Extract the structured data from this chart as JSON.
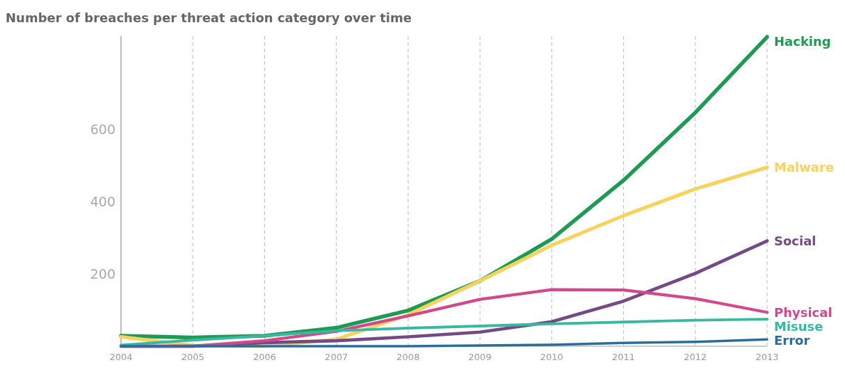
{
  "chart_data": {
    "type": "line",
    "title": "Number of breaches per threat action category over time",
    "x": [
      2004,
      2005,
      2006,
      2007,
      2008,
      2009,
      2010,
      2011,
      2012,
      2013
    ],
    "series": [
      {
        "name": "Hacking",
        "color": "#1f9a54",
        "values": [
          29,
          24,
          29,
          51,
          99,
          181,
          297,
          460,
          648,
          858
        ]
      },
      {
        "name": "Malware",
        "color": "#f4d35e",
        "values": [
          26,
          2,
          0,
          19,
          87,
          181,
          280,
          362,
          436,
          496
        ]
      },
      {
        "name": "Social",
        "color": "#744a86",
        "values": [
          0,
          0,
          10,
          15,
          26,
          39,
          68,
          125,
          202,
          292
        ]
      },
      {
        "name": "Physical",
        "color": "#d2498a",
        "values": [
          0,
          0,
          15,
          41,
          84,
          130,
          157,
          156,
          132,
          94
        ]
      },
      {
        "name": "Misuse",
        "color": "#36b9a0",
        "values": [
          3,
          17,
          29,
          43,
          50,
          56,
          62,
          67,
          72,
          75
        ]
      },
      {
        "name": "Error",
        "color": "#2a6d9c",
        "values": [
          0,
          0,
          0,
          0,
          0,
          2,
          4,
          9,
          12,
          19
        ]
      }
    ],
    "xlim": [
      2004,
      2013
    ],
    "xticks": [
      2004,
      2005,
      2006,
      2007,
      2008,
      2009,
      2010,
      2011,
      2012,
      2013
    ],
    "ylim": [
      0,
      860
    ],
    "yticks": [
      200,
      400,
      600
    ],
    "grid": "x",
    "line_style": "solid",
    "marker": "none"
  }
}
